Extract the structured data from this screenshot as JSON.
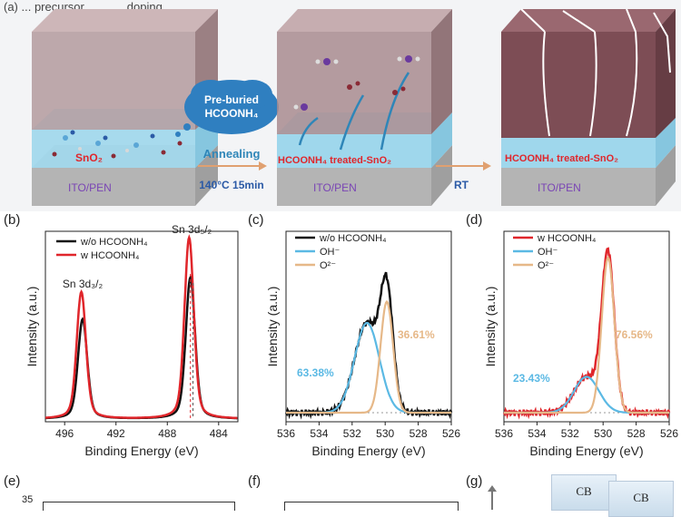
{
  "scheme": {
    "header_partial": "(a) ... precursor ... ... ... doping ...",
    "cloud_text_line1": "Pre-buried",
    "cloud_text_line2": "HCOONH₄",
    "stage1_layer": "SnO₂",
    "stage1_substrate": "ITO/PEN",
    "step1_label": "Annealing",
    "step1_condition": "140°C  15min",
    "stage2_layer": "HCOONH₄ treated-SnO₂",
    "stage2_substrate": "ITO/PEN",
    "step2_label": "RT",
    "stage3_layer": "HCOONH₄ treated-SnO₂",
    "stage3_substrate": "ITO/PEN",
    "colors": {
      "perovskite": "#9c7a7e",
      "perovskite_dark": "#7a4f56",
      "sno2": "#9fd7ec",
      "ito": "#b9b9b9",
      "red_text": "#e0262b",
      "purple_text": "#7a45b5",
      "arrow": "#e0a070",
      "blue_arrow": "#2f86b8"
    }
  },
  "panels": {
    "b": "(b)",
    "c": "(c)",
    "d": "(d)",
    "e": "(e)",
    "f": "(f)",
    "g": "(g)"
  },
  "chart_data": [
    {
      "id": "b",
      "type": "line",
      "title": "",
      "xlabel": "Binding Energy (eV)",
      "ylabel": "Intensity (a.u.)",
      "xlim": [
        497.5,
        482.5
      ],
      "xticks": [
        496,
        492,
        488,
        484
      ],
      "legend": [
        "w/o HCOONH₄",
        "w  HCOONH₄"
      ],
      "legend_position": "top-left",
      "series": [
        {
          "name": "w/o HCOONH₄",
          "color": "#111111",
          "peaks": [
            {
              "center": 494.6,
              "height": 0.55
            },
            {
              "center": 486.2,
              "height": 0.78
            }
          ]
        },
        {
          "name": "w  HCOONH₄",
          "color": "#e0262b",
          "peaks": [
            {
              "center": 494.7,
              "height": 0.7
            },
            {
              "center": 486.3,
              "height": 1.0
            }
          ]
        }
      ],
      "annotations": [
        "Sn 3d₃/₂",
        "Sn 3d₅/₂"
      ]
    },
    {
      "id": "c",
      "type": "line",
      "xlabel": "Binding Energy (eV)",
      "ylabel": "Intensity (a.u.)",
      "xlim": [
        536,
        526
      ],
      "xticks": [
        536,
        534,
        532,
        530,
        528,
        526
      ],
      "legend": [
        "w/o HCOONH₄",
        "OH⁻",
        "O²⁻"
      ],
      "legend_position": "top-left",
      "series": [
        {
          "name": "w/o HCOONH₄",
          "color": "#111111"
        },
        {
          "name": "OH⁻",
          "color": "#5bb9e4",
          "peak_center": 531.1,
          "height": 0.55,
          "area_percent": 63.38
        },
        {
          "name": "O²⁻",
          "color": "#e6b888",
          "peak_center": 529.9,
          "height": 0.68,
          "area_percent": 36.61
        }
      ],
      "annotations": [
        "63.38%",
        "36.61%"
      ]
    },
    {
      "id": "d",
      "type": "line",
      "xlabel": "Binding Energy (eV)",
      "ylabel": "Intensity (a.u.)",
      "xlim": [
        536,
        526
      ],
      "xticks": [
        536,
        534,
        532,
        530,
        528,
        526
      ],
      "legend": [
        "w  HCOONH₄",
        "OH⁻",
        "O²⁻"
      ],
      "legend_position": "top-left",
      "series": [
        {
          "name": "w  HCOONH₄",
          "color": "#e0262b"
        },
        {
          "name": "OH⁻",
          "color": "#5bb9e4",
          "peak_center": 531.0,
          "height": 0.22,
          "area_percent": 23.43
        },
        {
          "name": "O²⁻",
          "color": "#e6b888",
          "peak_center": 529.7,
          "height": 0.95,
          "area_percent": 76.56
        }
      ],
      "annotations": [
        "23.43%",
        "76.56%"
      ]
    }
  ],
  "partial_e": {
    "ytick": "35"
  },
  "partial_g": {
    "cb1": "CB",
    "cb2": "CB"
  }
}
